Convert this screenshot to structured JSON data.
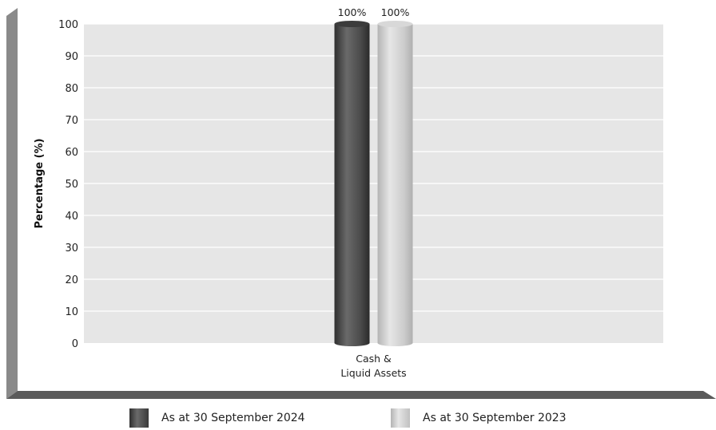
{
  "chart_data": {
    "type": "bar",
    "categories": [
      "Cash &\nLiquid Assets"
    ],
    "series": [
      {
        "name": "As at 30 September 2024",
        "values": [
          100
        ],
        "labels": [
          "100%"
        ],
        "color": "#4a4a4a"
      },
      {
        "name": "As at 30 September 2023",
        "values": [
          100
        ],
        "labels": [
          "100%"
        ],
        "color": "#c6c6c6"
      }
    ],
    "ylabel": "Percentage (%)",
    "xlabel": "",
    "ylim": [
      0,
      100
    ],
    "yticks": [
      0,
      10,
      20,
      30,
      40,
      50,
      60,
      70,
      80,
      90,
      100
    ],
    "grid": true,
    "legend": "bottom",
    "plot_background": "#e6e6e6",
    "frame_color": "#6e6e6e"
  }
}
